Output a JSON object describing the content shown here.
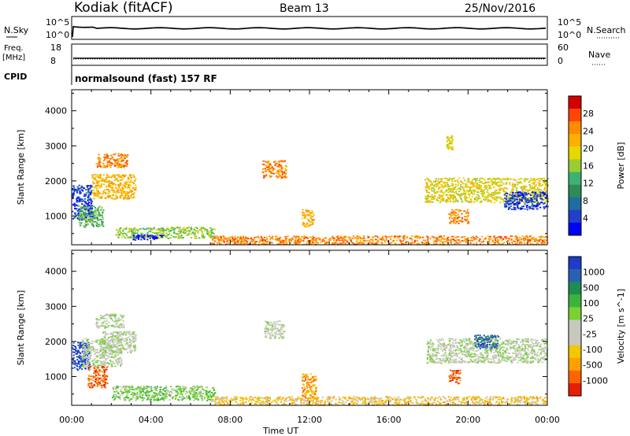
{
  "header": {
    "radar": "Kodiak (fitACF)",
    "beam": "Beam 13",
    "date": "25/Nov/2016"
  },
  "strips": {
    "nsky_label": "N.Sky",
    "nsky_ticks": [
      "10^5",
      "10^0"
    ],
    "nsearch_label": "N.Search",
    "nsearch_ticks": [
      "10^5",
      "10^0"
    ],
    "freq_label": "Freq.",
    "freq_unit": "[MHz]",
    "freq_ticks": [
      "18",
      "8"
    ],
    "nave_label": "Nave",
    "nave_ticks": [
      "60",
      "0"
    ],
    "cpid_label": "CPID",
    "cpid_text": "normalsound (fast) 157 RF"
  },
  "chart_data": [
    {
      "type": "heatmap",
      "quantity": "Power",
      "ylabel": "Slant Range [km]",
      "yticks": [
        1000,
        2000,
        3000,
        4000
      ],
      "ylim": [
        180,
        4600
      ],
      "xlim": [
        0,
        24
      ],
      "colorbar": {
        "label": "Power [dB]",
        "ticks": [
          "28",
          "24",
          "20",
          "16",
          "12",
          "8",
          "4"
        ],
        "colors": [
          "#d40000",
          "#ff4500",
          "#ff8c00",
          "#ffb000",
          "#e6d800",
          "#9acd32",
          "#3cb371",
          "#2e8b57",
          "#1e6ea0",
          "#2040c8",
          "#0000ff"
        ]
      },
      "echo_regions": [
        {
          "t": [
            0.0,
            1.0
          ],
          "r": [
            900,
            1900
          ],
          "level": 9
        },
        {
          "t": [
            0.3,
            1.6
          ],
          "r": [
            700,
            1300
          ],
          "level": 6
        },
        {
          "t": [
            1.0,
            3.2
          ],
          "r": [
            1500,
            2200
          ],
          "level": 3
        },
        {
          "t": [
            1.2,
            2.8
          ],
          "r": [
            2400,
            2800
          ],
          "level": 2
        },
        {
          "t": [
            2.2,
            7.2
          ],
          "r": [
            380,
            700
          ],
          "level": 5
        },
        {
          "t": [
            3.0,
            4.6
          ],
          "r": [
            330,
            480
          ],
          "level": 10
        },
        {
          "t": [
            9.6,
            10.8
          ],
          "r": [
            2100,
            2600
          ],
          "level": 2
        },
        {
          "t": [
            11.6,
            12.2
          ],
          "r": [
            700,
            1200
          ],
          "level": 3
        },
        {
          "t": [
            7.0,
            24.0
          ],
          "r": [
            200,
            450
          ],
          "level": 2
        },
        {
          "t": [
            17.8,
            24.0
          ],
          "r": [
            1400,
            2100
          ],
          "level": 4
        },
        {
          "t": [
            21.8,
            24.0
          ],
          "r": [
            1200,
            1700
          ],
          "level": 9
        },
        {
          "t": [
            19.0,
            20.0
          ],
          "r": [
            800,
            1200
          ],
          "level": 2
        },
        {
          "t": [
            18.9,
            19.2
          ],
          "r": [
            2900,
            3300
          ],
          "level": 4
        }
      ]
    },
    {
      "type": "heatmap",
      "quantity": "Velocity",
      "ylabel": "Slant Range [km]",
      "yticks": [
        1000,
        2000,
        3000,
        4000
      ],
      "ylim": [
        180,
        4600
      ],
      "xlim": [
        0,
        24
      ],
      "xlabel": "Time UT",
      "xticks": [
        "00:00",
        "04:00",
        "08:00",
        "12:00",
        "16:00",
        "20:00",
        "00:00"
      ],
      "colorbar": {
        "label": "Velocity [m s^-1]",
        "ticks": [
          "1000",
          "500",
          "100",
          "25",
          "-25",
          "-100",
          "-500",
          "-1000"
        ],
        "colors": [
          "#1e3cc8",
          "#2860b4",
          "#1e8c50",
          "#3cb43c",
          "#78d232",
          "#c8c8c0",
          "#c8c8c0",
          "#f0c800",
          "#ffa000",
          "#ff6400",
          "#e61e00"
        ]
      },
      "echo_regions": [
        {
          "t": [
            0.0,
            0.9
          ],
          "r": [
            1200,
            2000
          ],
          "level": 0
        },
        {
          "t": [
            0.5,
            2.5
          ],
          "r": [
            1300,
            2100
          ],
          "level": 5
        },
        {
          "t": [
            0.8,
            1.8
          ],
          "r": [
            700,
            1300
          ],
          "level": 9
        },
        {
          "t": [
            1.5,
            3.2
          ],
          "r": [
            1700,
            2300
          ],
          "level": 5
        },
        {
          "t": [
            1.2,
            2.6
          ],
          "r": [
            2400,
            2800
          ],
          "level": 5
        },
        {
          "t": [
            2.0,
            7.2
          ],
          "r": [
            330,
            750
          ],
          "level": 4
        },
        {
          "t": [
            7.0,
            24.0
          ],
          "r": [
            200,
            450
          ],
          "level": 7
        },
        {
          "t": [
            9.7,
            10.7
          ],
          "r": [
            2100,
            2600
          ],
          "level": 5
        },
        {
          "t": [
            11.6,
            12.3
          ],
          "r": [
            400,
            1100
          ],
          "level": 8
        },
        {
          "t": [
            17.9,
            24.0
          ],
          "r": [
            1400,
            2100
          ],
          "level": 5
        },
        {
          "t": [
            19.0,
            19.6
          ],
          "r": [
            800,
            1200
          ],
          "level": 9
        },
        {
          "t": [
            20.3,
            21.5
          ],
          "r": [
            1800,
            2200
          ],
          "level": 1
        }
      ]
    }
  ]
}
